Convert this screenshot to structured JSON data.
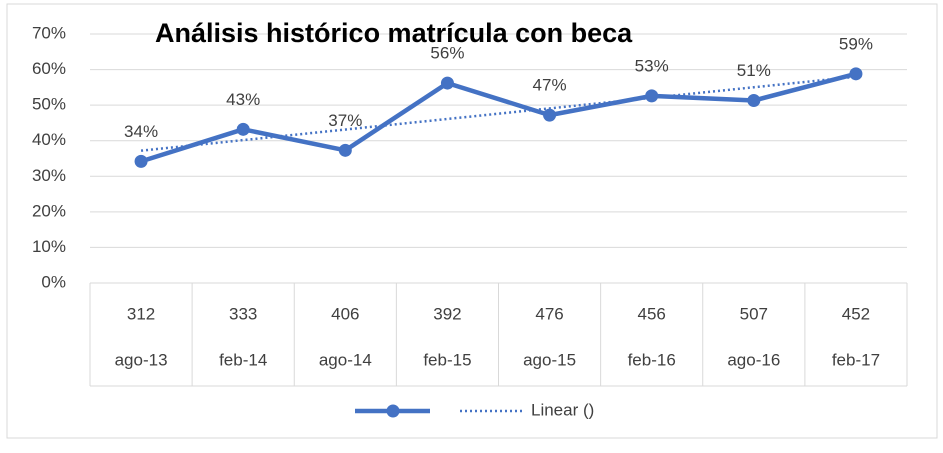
{
  "chart_data": {
    "type": "line",
    "title": "Análisis histórico matrícula con beca",
    "categories": [
      "ago-13",
      "feb-14",
      "ago-14",
      "feb-15",
      "ago-15",
      "feb-16",
      "ago-16",
      "feb-17"
    ],
    "category_upper_labels": [
      "312",
      "333",
      "406",
      "392",
      "476",
      "456",
      "507",
      "452"
    ],
    "series": [
      {
        "name": "",
        "color": "#4472c4",
        "values": [
          34.2,
          43.2,
          37.3,
          56.2,
          47.2,
          52.6,
          51.3,
          58.8
        ],
        "value_labels": [
          "34%",
          "43%",
          "37%",
          "56%",
          "47%",
          "53%",
          "51%",
          "59%"
        ]
      }
    ],
    "trendline": {
      "name": "Linear ()",
      "type": "linear",
      "color": "#4472c4"
    },
    "ylim": [
      0,
      70
    ],
    "yticks": [
      {
        "value": 0,
        "label": "0%"
      },
      {
        "value": 10,
        "label": "10%"
      },
      {
        "value": 20,
        "label": "20%"
      },
      {
        "value": 30,
        "label": "30%"
      },
      {
        "value": 40,
        "label": "40%"
      },
      {
        "value": 50,
        "label": "50%"
      },
      {
        "value": 60,
        "label": "60%"
      },
      {
        "value": 70,
        "label": "70%"
      }
    ],
    "grid": true,
    "legend": "bottom"
  }
}
